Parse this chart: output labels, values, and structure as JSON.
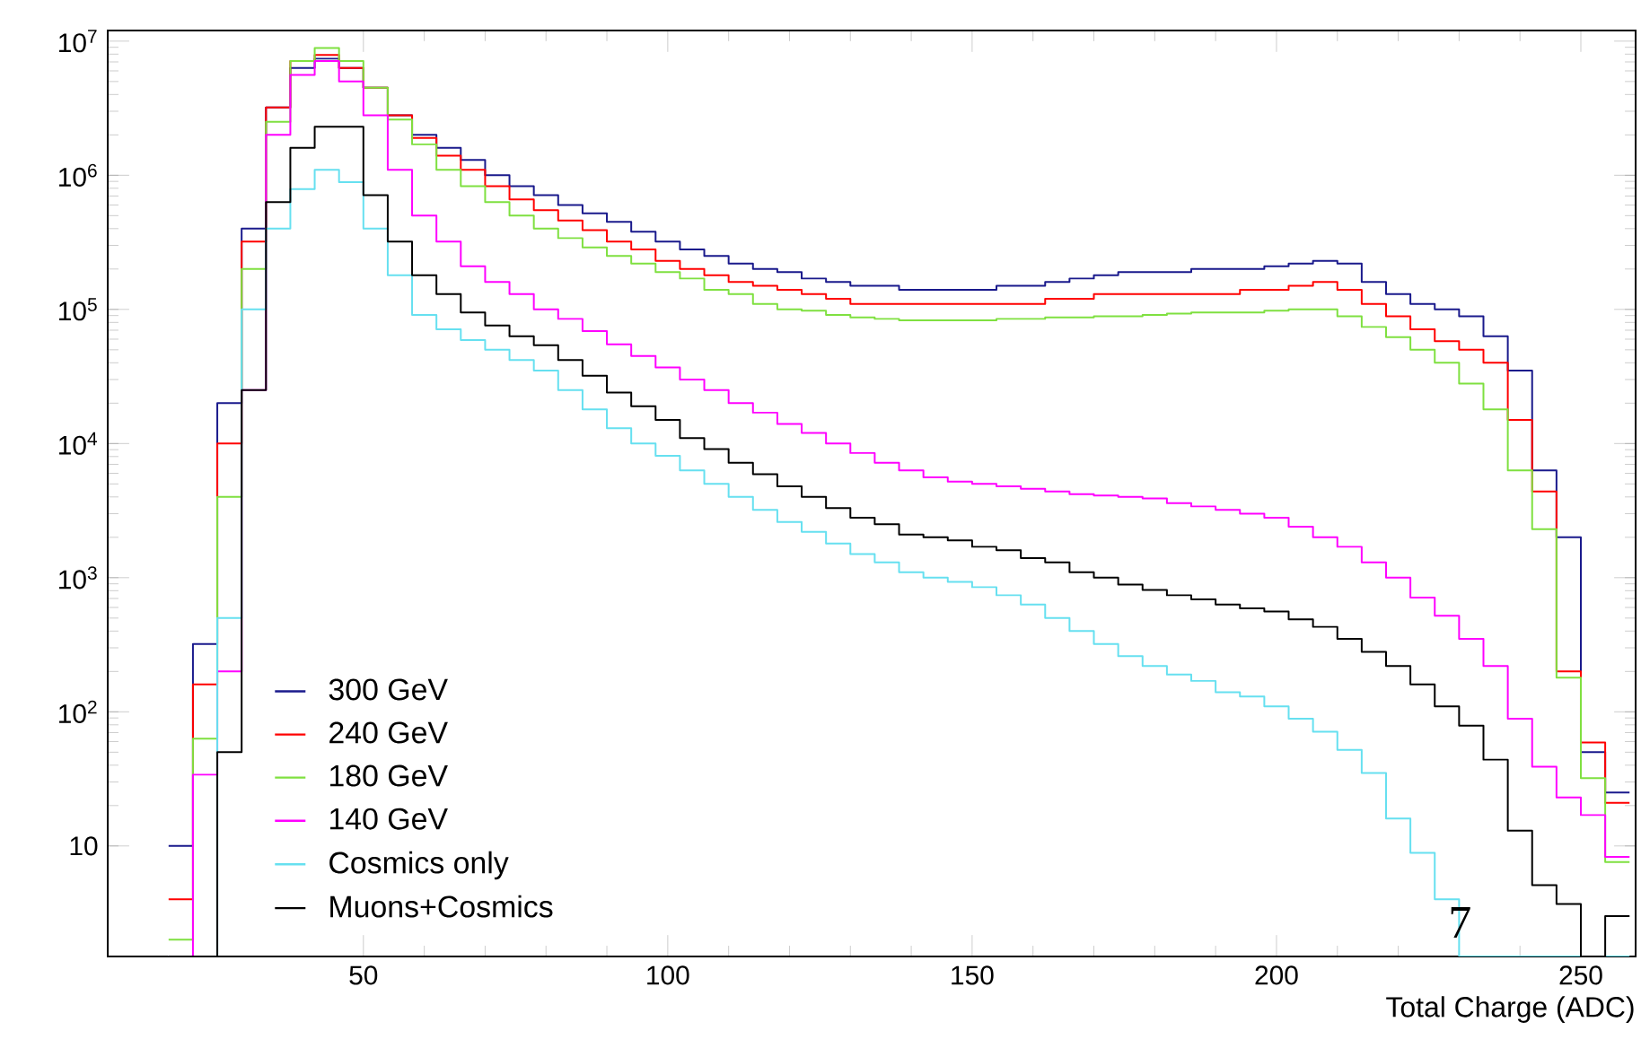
{
  "chart_data": {
    "type": "histogram",
    "xlabel": "Total Charge (ADC)",
    "log": "y",
    "legend": "bottom left",
    "xlim": [
      8,
      259
    ],
    "ylim": [
      1.5,
      12000000.0
    ],
    "xticks": [
      50,
      100,
      150,
      200,
      250
    ],
    "yticks": [
      10,
      {
        "value": 100,
        "label": "10$^{2}$"
      },
      {
        "value": 1000,
        "label": "10$^{3}$"
      },
      {
        "value": 10000,
        "label": "10$^{4}$"
      },
      {
        "value": 100000,
        "label": "10$^{5}$"
      },
      {
        "value": 1000000,
        "label": "10$^{6}$"
      },
      {
        "value": 10000000,
        "label": "10$^{7}$"
      }
    ],
    "bins": [
      18,
      22,
      26,
      30,
      34,
      38,
      42,
      46,
      50,
      54,
      58,
      62,
      66,
      70,
      74,
      78,
      82,
      86,
      90,
      94,
      98,
      102,
      106,
      110,
      114,
      118,
      122,
      126,
      130,
      134,
      138,
      142,
      146,
      150,
      154,
      158,
      162,
      166,
      170,
      174,
      178,
      182,
      186,
      190,
      194,
      198,
      202,
      206,
      210,
      214,
      218,
      222,
      226,
      230,
      234,
      238,
      242,
      246,
      250,
      254,
      258
    ],
    "series": [
      {
        "name": "300 GeV",
        "color": "#1a1a8c",
        "values": [
          10,
          320,
          20000.0,
          400000.0,
          3200000.0,
          6300000.0,
          7400000.0,
          6300000.0,
          4500000.0,
          2800000.0,
          2000000.0,
          1600000.0,
          1300000.0,
          1000000.0,
          830000.0,
          710000.0,
          600000.0,
          520000.0,
          450000.0,
          380000.0,
          320000.0,
          280000.0,
          250000.0,
          220000.0,
          200000.0,
          190000.0,
          170000.0,
          160000.0,
          150000.0,
          150000.0,
          140000.0,
          140000.0,
          140000.0,
          140000.0,
          150000.0,
          150000.0,
          160000.0,
          170000.0,
          180000.0,
          190000.0,
          190000.0,
          190000.0,
          200000.0,
          200000.0,
          200000.0,
          210000.0,
          220000.0,
          230000.0,
          220000.0,
          160000.0,
          130000.0,
          110000.0,
          100000.0,
          89000.0,
          63000.0,
          35000.0,
          6300,
          2000,
          50,
          25
        ]
      },
      {
        "name": "240 GeV",
        "color": "#ff0000",
        "values": [
          4,
          160,
          10000.0,
          320000.0,
          3200000.0,
          7100000.0,
          7900000.0,
          6300000.0,
          4500000.0,
          2800000.0,
          1900000.0,
          1400000.0,
          1100000.0,
          830000.0,
          660000.0,
          550000.0,
          460000.0,
          390000.0,
          320000.0,
          280000.0,
          230000.0,
          200000.0,
          180000.0,
          160000.0,
          150000.0,
          140000.0,
          130000.0,
          120000.0,
          110000.0,
          110000.0,
          110000.0,
          110000.0,
          110000.0,
          110000.0,
          110000.0,
          110000.0,
          120000.0,
          120000.0,
          130000.0,
          130000.0,
          130000.0,
          130000.0,
          130000.0,
          130000.0,
          140000.0,
          140000.0,
          150000.0,
          160000.0,
          140000.0,
          110000.0,
          89000.0,
          71000.0,
          58000.0,
          50000.0,
          40000.0,
          15000.0,
          4400,
          200,
          59,
          21
        ]
      },
      {
        "name": "180 GeV",
        "color": "#7fe040",
        "values": [
          2,
          63,
          4000,
          200000.0,
          2500000.0,
          7100000.0,
          8900000.0,
          7100000.0,
          4500000.0,
          2600000.0,
          1700000.0,
          1100000.0,
          830000.0,
          630000.0,
          500000.0,
          400000.0,
          340000.0,
          290000.0,
          250000.0,
          220000.0,
          190000.0,
          170000.0,
          140000.0,
          130000.0,
          110000.0,
          100000.0,
          98000.0,
          91000.0,
          87000.0,
          85000.0,
          83000.0,
          83000.0,
          83000.0,
          83000.0,
          85000.0,
          85000.0,
          87000.0,
          87000.0,
          89000.0,
          89000.0,
          91000.0,
          93000.0,
          95000.0,
          95000.0,
          95000.0,
          98000.0,
          100000.0,
          100000.0,
          89000.0,
          74000.0,
          62000.0,
          50000.0,
          40000.0,
          28000.0,
          18000.0,
          6300,
          2300,
          180,
          32,
          7.6
        ]
      },
      {
        "name": "140 GeV",
        "color": "#ff00ff",
        "values": [
          null,
          34,
          200,
          25000.0,
          2000000.0,
          5600000.0,
          7100000.0,
          5000000.0,
          2800000.0,
          1100000.0,
          500000.0,
          320000.0,
          210000.0,
          160000.0,
          130000.0,
          100000.0,
          85000.0,
          69000.0,
          55000.0,
          45000.0,
          37000.0,
          30000.0,
          25000.0,
          20000.0,
          17000.0,
          14000.0,
          12000.0,
          10000.0,
          8500,
          7200,
          6300,
          5600,
          5200,
          5000,
          4800,
          4600,
          4400,
          4200,
          4100,
          4000,
          3900,
          3600,
          3400,
          3200,
          3000,
          2800,
          2400,
          2000,
          1700,
          1300,
          1000,
          710,
          520,
          350,
          220,
          89,
          39,
          23,
          17,
          8.3
        ]
      },
      {
        "name": "Cosmics only",
        "color": "#66e0f0",
        "values": [
          null,
          null,
          500,
          100000.0,
          400000.0,
          790000.0,
          1100000.0,
          890000.0,
          400000.0,
          180000.0,
          91000.0,
          71000.0,
          59000.0,
          50000.0,
          42000.0,
          35000.0,
          25000.0,
          18000.0,
          13000.0,
          10000.0,
          8100,
          6300,
          5000,
          4000,
          3200,
          2600,
          2200,
          1800,
          1500,
          1300,
          1100,
          1000,
          930,
          850,
          740,
          630,
          500,
          400,
          320,
          260,
          220,
          190,
          170,
          140,
          130,
          110,
          89,
          71,
          52,
          35,
          16,
          8.9,
          4.0,
          null,
          null,
          null,
          null,
          null,
          null,
          null
        ]
      },
      {
        "name": "Muons+Cosmics",
        "color": "#000000",
        "values": [
          null,
          null,
          50,
          25000.0,
          630000.0,
          1600000.0,
          2300000.0,
          2300000.0,
          710000.0,
          320000.0,
          180000.0,
          130000.0,
          95000.0,
          76000.0,
          63000.0,
          54000.0,
          42000.0,
          32000.0,
          24000.0,
          19000.0,
          15000.0,
          11000.0,
          9100,
          7200,
          5900,
          4800,
          4000,
          3300,
          2800,
          2500,
          2100,
          2000,
          1900,
          1700,
          1600,
          1400,
          1300,
          1100,
          1000,
          890,
          810,
          740,
          690,
          630,
          590,
          560,
          490,
          430,
          350,
          280,
          220,
          160,
          110,
          79,
          44,
          13,
          5.1,
          3.7,
          null,
          3.0
        ]
      }
    ],
    "annotations": [
      "7"
    ]
  }
}
